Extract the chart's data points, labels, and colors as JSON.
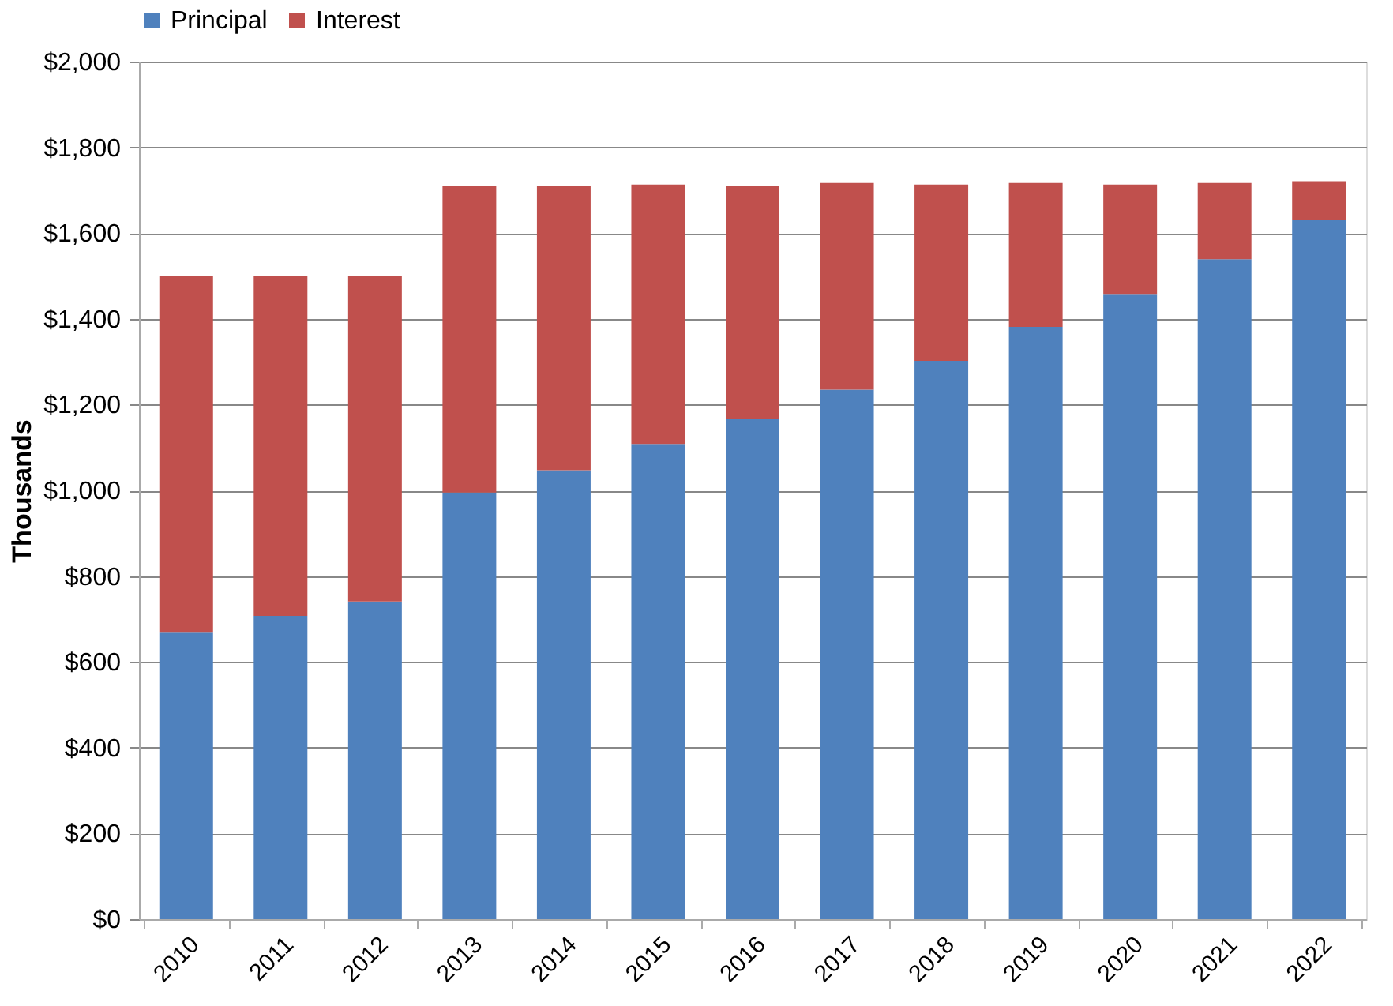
{
  "chart_data": {
    "type": "bar",
    "stacked": true,
    "ylabel": "Thousands",
    "categories": [
      "2010",
      "2011",
      "2012",
      "2013",
      "2014",
      "2015",
      "2016",
      "2017",
      "2018",
      "2019",
      "2020",
      "2021",
      "2022"
    ],
    "series": [
      {
        "name": "Principal",
        "color": "#4f81bd",
        "values": [
          670,
          707,
          741,
          995,
          1047,
          1108,
          1166,
          1235,
          1302,
          1381,
          1458,
          1539,
          1630
        ]
      },
      {
        "name": "Interest",
        "color": "#c0504d",
        "values": [
          830,
          793,
          759,
          715,
          663,
          605,
          545,
          482,
          411,
          336,
          255,
          178,
          91
        ]
      }
    ],
    "ylim": [
      0,
      2000
    ],
    "yticks": [
      {
        "value": 0,
        "label": "$0"
      },
      {
        "value": 200,
        "label": "$200"
      },
      {
        "value": 400,
        "label": "$400"
      },
      {
        "value": 600,
        "label": "$600"
      },
      {
        "value": 800,
        "label": "$800"
      },
      {
        "value": 1000,
        "label": "$1,000"
      },
      {
        "value": 1200,
        "label": "$1,200"
      },
      {
        "value": 1400,
        "label": "$1,400"
      },
      {
        "value": 1600,
        "label": "$1,600"
      },
      {
        "value": 1800,
        "label": "$1,800"
      },
      {
        "value": 2000,
        "label": "$2,000"
      }
    ],
    "grid": "y",
    "legend": "top"
  }
}
